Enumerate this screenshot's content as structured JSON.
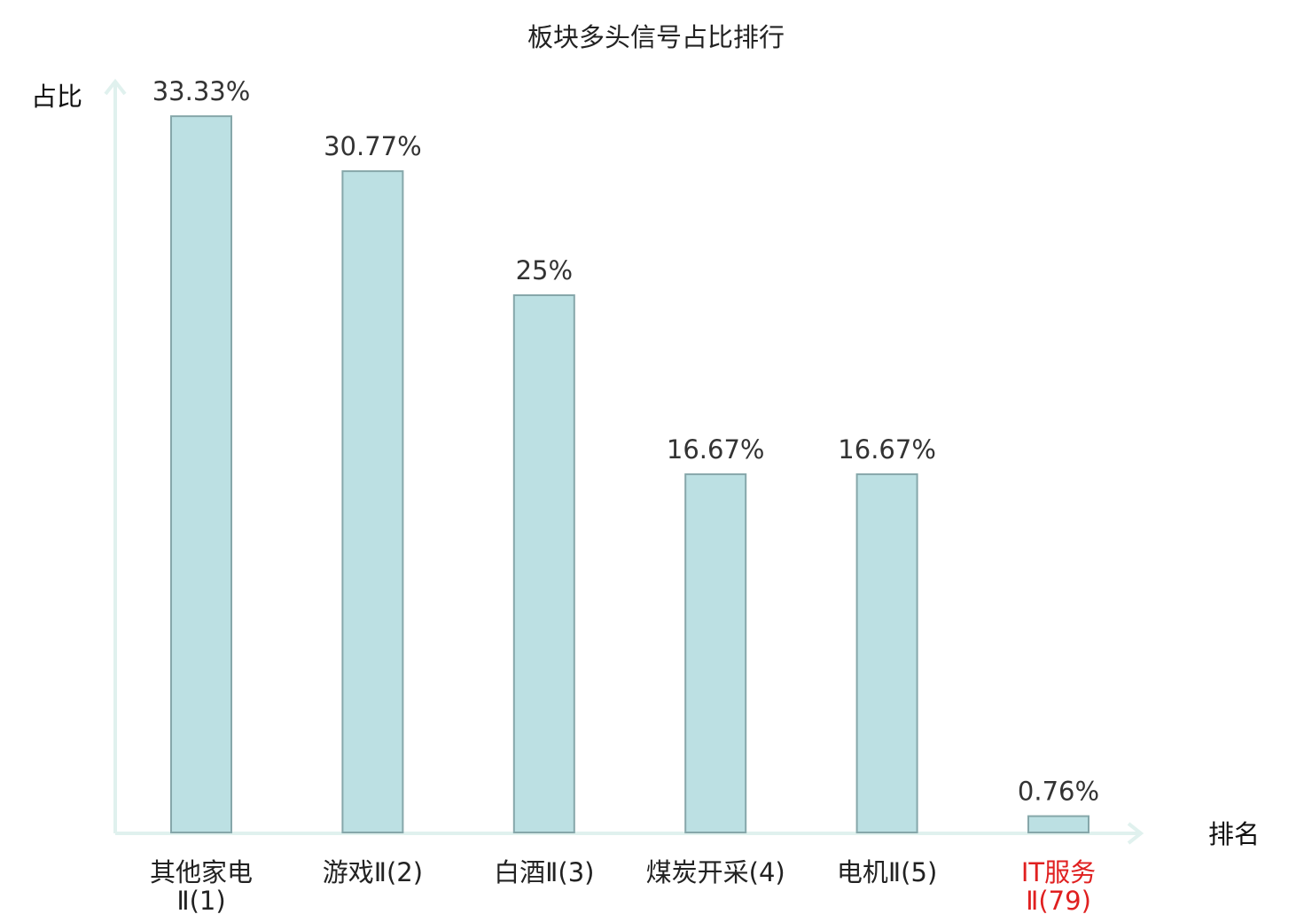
{
  "chart_data": {
    "type": "bar",
    "title": "板块多头信号占比排行",
    "ylabel": "占比",
    "xlabel": "排名",
    "categories": [
      [
        "其他家电",
        "Ⅱ(1)"
      ],
      [
        "游戏Ⅱ(2)"
      ],
      [
        "白酒Ⅱ(3)"
      ],
      [
        "煤炭开采(4)"
      ],
      [
        "电机Ⅱ(5)"
      ],
      [
        "IT服务",
        "Ⅱ(79)"
      ]
    ],
    "values": [
      33.33,
      30.77,
      25,
      16.67,
      16.67,
      0.76
    ],
    "value_labels": [
      "33.33%",
      "30.77%",
      "25%",
      "16.67%",
      "16.67%",
      "0.76%"
    ],
    "highlight": [
      false,
      false,
      false,
      false,
      false,
      true
    ],
    "ylim": [
      0,
      35
    ],
    "grid": false,
    "legend": "none",
    "colors": {
      "bar_fill": "#bce0e3",
      "bar_stroke": "#86a7aa",
      "axis": "#e0f1ee",
      "label_default": "#222222",
      "label_highlight": "#e02020",
      "value_label": "#333333"
    }
  }
}
